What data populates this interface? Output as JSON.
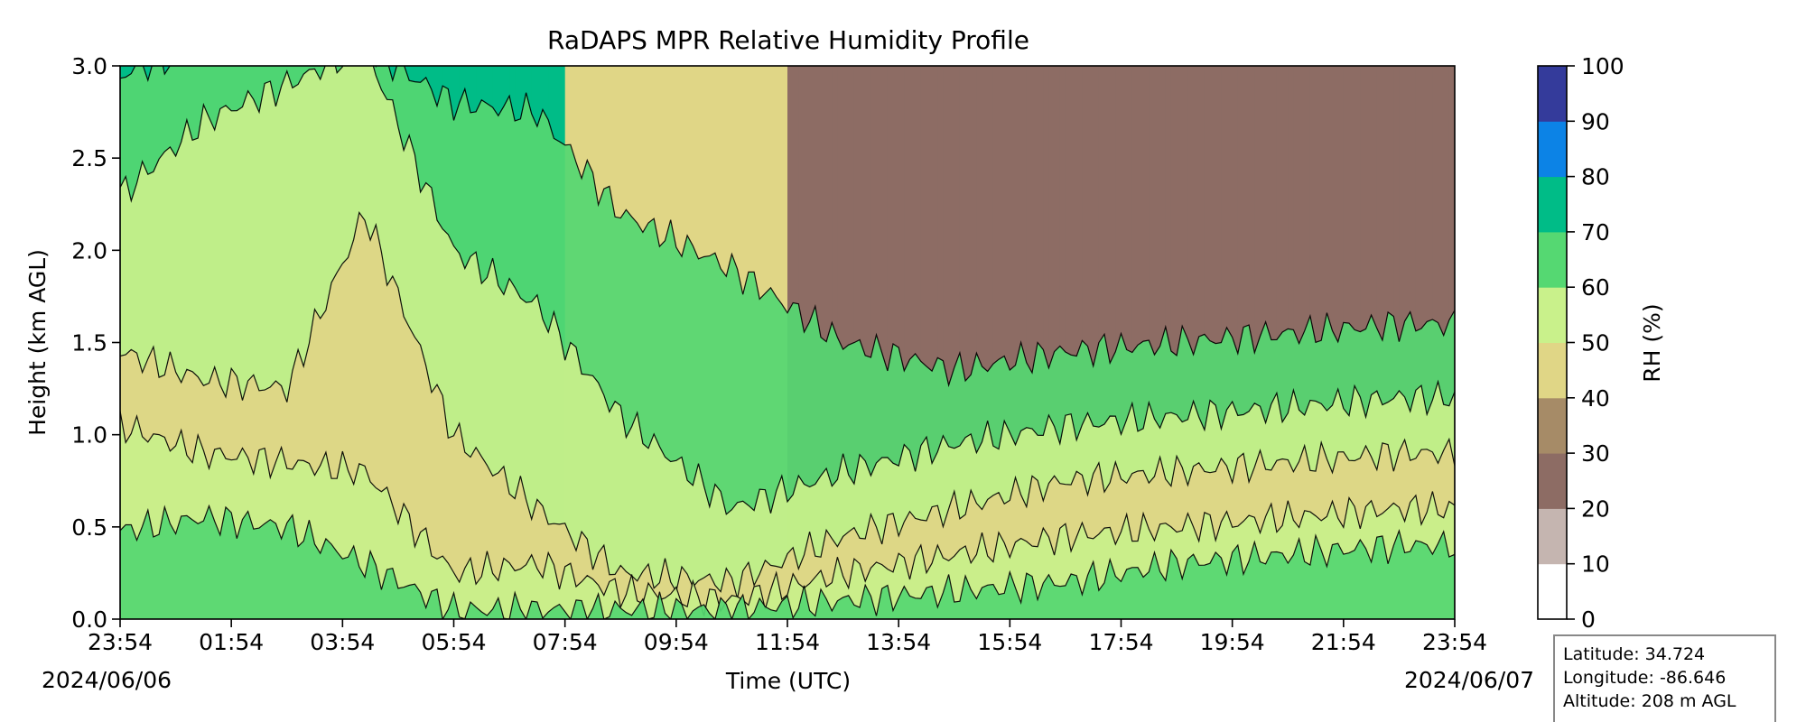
{
  "chart_data": {
    "type": "heatmap",
    "title": "RaDAPS MPR Relative Humidity Profile",
    "xlabel": "Time (UTC)",
    "ylabel": "Height (km AGL)",
    "xticks": [
      "23:54",
      "01:54",
      "03:54",
      "05:54",
      "07:54",
      "09:54",
      "11:54",
      "13:54",
      "15:54",
      "17:54",
      "19:54",
      "21:54",
      "23:54"
    ],
    "x_dates": [
      "2024/06/06",
      "2024/06/07"
    ],
    "x_range_hours": [
      0,
      24
    ],
    "yticks": [
      "0.0",
      "0.5",
      "1.0",
      "1.5",
      "2.0",
      "2.5",
      "3.0"
    ],
    "ylim": [
      0,
      3
    ],
    "colorbar": {
      "label": "RH (%)",
      "ticks": [
        "0",
        "10",
        "20",
        "30",
        "40",
        "50",
        "60",
        "70",
        "80",
        "90",
        "100"
      ],
      "levels": [
        0,
        10,
        20,
        30,
        40,
        50,
        60,
        70,
        80,
        90,
        100
      ],
      "colors": [
        "#ffffff",
        "#c5b5b0",
        "#8d6c64",
        "#a68b67",
        "#e0d686",
        "#c9f18b",
        "#55d872",
        "#00bc87",
        "#0c83e6",
        "#343b9b"
      ]
    },
    "contour_levels_sample": [
      {
        "t": 0,
        "levels": [
          0.48,
          1.05,
          1.45,
          2.3,
          2.95
        ]
      },
      {
        "t": 1.5,
        "levels": [
          0.55,
          0.9,
          1.3,
          2.7,
          3.1
        ]
      },
      {
        "t": 3,
        "levels": [
          0.5,
          0.85,
          1.25,
          2.9,
          3.1
        ]
      },
      {
        "t": 4.4,
        "levels": [
          0.3,
          0.8,
          2.2,
          3.1,
          3.1
        ]
      },
      {
        "t": 6,
        "levels": [
          0.05,
          0.25,
          1.0,
          2.0,
          2.8
        ]
      },
      {
        "t": 7.5,
        "levels": [
          0.05,
          0.3,
          0.6,
          1.7,
          2.75
        ]
      },
      {
        "t": 9,
        "levels": [
          0.05,
          0.15,
          0.25,
          1.1,
          2.2
        ]
      },
      {
        "t": 11,
        "levels": [
          0.05,
          0.1,
          0.2,
          0.6,
          1.9
        ]
      },
      {
        "t": 13,
        "levels": [
          0.1,
          0.25,
          0.45,
          0.8,
          1.5
        ]
      },
      {
        "t": 15,
        "levels": [
          0.15,
          0.35,
          0.6,
          0.95,
          1.35
        ]
      },
      {
        "t": 17,
        "levels": [
          0.2,
          0.45,
          0.75,
          1.05,
          1.45
        ]
      },
      {
        "t": 19,
        "levels": [
          0.3,
          0.5,
          0.8,
          1.1,
          1.5
        ]
      },
      {
        "t": 21,
        "levels": [
          0.35,
          0.55,
          0.85,
          1.15,
          1.55
        ]
      },
      {
        "t": 23,
        "levels": [
          0.4,
          0.6,
          0.9,
          1.2,
          1.6
        ]
      }
    ]
  },
  "info": {
    "latitude": "Latitude: 34.724",
    "longitude": "Longitude: -86.646",
    "altitude": "Altitude: 208 m AGL"
  }
}
